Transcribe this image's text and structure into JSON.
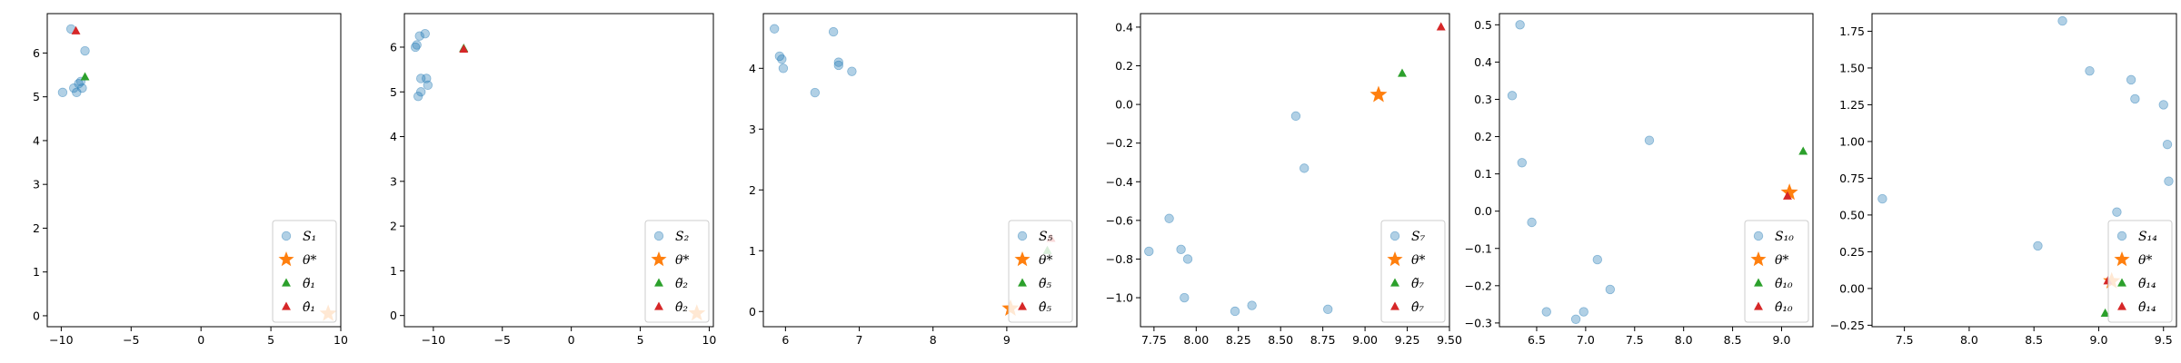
{
  "colors": {
    "sample": "#1f77b4",
    "star": "#ff7f0e",
    "tri_green": "#2ca02c",
    "tri_red": "#d62728"
  },
  "chart_data": [
    {
      "type": "scatter",
      "xlim": [
        -11.0,
        10.0
      ],
      "ylim": [
        -0.25,
        6.9
      ],
      "xticks": [
        -10,
        -5,
        0,
        5,
        10
      ],
      "xtick_labels": [
        "−10",
        "−5",
        "0",
        "5",
        "10"
      ],
      "yticks": [
        0,
        1,
        2,
        3,
        4,
        5,
        6
      ],
      "ytick_labels": [
        "0",
        "1",
        "2",
        "3",
        "4",
        "5",
        "6"
      ],
      "legend": {
        "placement": "lower-right",
        "labels": [
          "S₁",
          "θ*",
          "θ̃₁",
          "θ̂₁"
        ]
      },
      "samples": [
        [
          -9.9,
          5.1
        ],
        [
          -9.3,
          6.55
        ],
        [
          -9.1,
          5.2
        ],
        [
          -8.9,
          5.1
        ],
        [
          -8.75,
          5.3
        ],
        [
          -8.6,
          5.35
        ],
        [
          -8.3,
          6.05
        ],
        [
          -8.5,
          5.2
        ]
      ],
      "star": [
        9.1,
        0.05
      ],
      "tri_green": [
        -8.3,
        5.45
      ],
      "tri_red": [
        -8.95,
        6.5
      ]
    },
    {
      "type": "scatter",
      "xlim": [
        -12.1,
        10.3
      ],
      "ylim": [
        -0.25,
        6.75
      ],
      "xticks": [
        -10,
        -5,
        0,
        5,
        10
      ],
      "xtick_labels": [
        "−10",
        "−5",
        "0",
        "5",
        "10"
      ],
      "yticks": [
        0,
        1,
        2,
        3,
        4,
        5,
        6
      ],
      "ytick_labels": [
        "0",
        "1",
        "2",
        "3",
        "4",
        "5",
        "6"
      ],
      "legend": {
        "placement": "lower-right",
        "labels": [
          "S₂",
          "θ*",
          "θ̃₂",
          "θ̂₂"
        ]
      },
      "samples": [
        [
          -11.2,
          6.05
        ],
        [
          -11.0,
          6.25
        ],
        [
          -10.6,
          6.3
        ],
        [
          -10.9,
          5.3
        ],
        [
          -10.5,
          5.3
        ],
        [
          -10.4,
          5.15
        ],
        [
          -10.9,
          5.0
        ],
        [
          -11.1,
          4.9
        ],
        [
          -11.3,
          6.0
        ]
      ],
      "star": [
        9.1,
        0.05
      ],
      "tri_green": [
        -7.8,
        5.97
      ],
      "tri_red": [
        -7.8,
        5.95
      ]
    },
    {
      "type": "scatter",
      "xlim": [
        5.7,
        9.95
      ],
      "ylim": [
        -0.25,
        4.9
      ],
      "xticks": [
        6,
        7,
        8,
        9
      ],
      "xtick_labels": [
        "6",
        "7",
        "8",
        "9"
      ],
      "yticks": [
        0,
        1,
        2,
        3,
        4
      ],
      "ytick_labels": [
        "0",
        "1",
        "2",
        "3",
        "4"
      ],
      "legend": {
        "placement": "lower-right",
        "labels": [
          "S₅",
          "θ*",
          "θ̃₅",
          "θ̂₅"
        ]
      },
      "samples": [
        [
          5.85,
          4.65
        ],
        [
          5.92,
          4.2
        ],
        [
          5.95,
          4.15
        ],
        [
          5.97,
          4.0
        ],
        [
          6.4,
          3.6
        ],
        [
          6.65,
          4.6
        ],
        [
          6.72,
          4.1
        ],
        [
          6.72,
          4.05
        ],
        [
          6.9,
          3.95
        ]
      ],
      "star": [
        9.05,
        0.05
      ],
      "tri_green": [
        9.55,
        1.0
      ],
      "tri_red": [
        9.6,
        1.2
      ]
    },
    {
      "type": "scatter",
      "xlim": [
        7.67,
        9.5
      ],
      "ylim": [
        -1.15,
        0.47
      ],
      "xticks": [
        7.75,
        8.0,
        8.25,
        8.5,
        8.75,
        9.0,
        9.25,
        9.5
      ],
      "xtick_labels": [
        "7.75",
        "8.00",
        "8.25",
        "8.50",
        "8.75",
        "9.00",
        "9.25",
        "9.50"
      ],
      "yticks": [
        -1.0,
        -0.8,
        -0.6,
        -0.4,
        -0.2,
        0.0,
        0.2,
        0.4
      ],
      "ytick_labels": [
        "−1.0",
        "−0.8",
        "−0.6",
        "−0.4",
        "−0.2",
        "0.0",
        "0.2",
        "0.4"
      ],
      "legend": {
        "placement": "lower-right",
        "labels": [
          "S₇",
          "θ*",
          "θ̃₇",
          "θ̂₇"
        ]
      },
      "samples": [
        [
          7.72,
          -0.76
        ],
        [
          7.84,
          -0.59
        ],
        [
          7.91,
          -0.75
        ],
        [
          7.93,
          -1.0
        ],
        [
          7.95,
          -0.8
        ],
        [
          8.23,
          -1.07
        ],
        [
          8.33,
          -1.04
        ],
        [
          8.59,
          -0.06
        ],
        [
          8.64,
          -0.33
        ],
        [
          8.78,
          -1.06
        ]
      ],
      "star": [
        9.08,
        0.05
      ],
      "tri_green": [
        9.22,
        0.16
      ],
      "tri_red": [
        9.45,
        0.4
      ]
    },
    {
      "type": "scatter",
      "xlim": [
        6.12,
        9.32
      ],
      "ylim": [
        -0.31,
        0.53
      ],
      "xticks": [
        6.5,
        7.0,
        7.5,
        8.0,
        8.5,
        9.0
      ],
      "xtick_labels": [
        "6.5",
        "7.0",
        "7.5",
        "8.0",
        "8.5",
        "9.0"
      ],
      "yticks": [
        -0.3,
        -0.2,
        -0.1,
        0.0,
        0.1,
        0.2,
        0.3,
        0.4,
        0.5
      ],
      "ytick_labels": [
        "−0.3",
        "−0.2",
        "−0.1",
        "0.0",
        "0.1",
        "0.2",
        "0.3",
        "0.4",
        "0.5"
      ],
      "legend": {
        "placement": "lower-right",
        "labels": [
          "S₁₀",
          "θ*",
          "θ̃₁₀",
          "θ̂₁₀"
        ]
      },
      "samples": [
        [
          6.25,
          0.31
        ],
        [
          6.33,
          0.5
        ],
        [
          6.35,
          0.13
        ],
        [
          6.45,
          -0.03
        ],
        [
          6.6,
          -0.27
        ],
        [
          6.9,
          -0.29
        ],
        [
          6.98,
          -0.27
        ],
        [
          7.12,
          -0.13
        ],
        [
          7.25,
          -0.21
        ],
        [
          7.65,
          0.19
        ]
      ],
      "star": [
        9.08,
        0.05
      ],
      "tri_green": [
        9.22,
        0.16
      ],
      "tri_red": [
        9.06,
        0.04
      ]
    },
    {
      "type": "scatter",
      "xlim": [
        7.25,
        9.6
      ],
      "ylim": [
        -0.26,
        1.87
      ],
      "xticks": [
        7.5,
        8.0,
        8.5,
        9.0,
        9.5
      ],
      "xtick_labels": [
        "7.5",
        "8.0",
        "8.5",
        "9.0",
        "9.5"
      ],
      "yticks": [
        -0.25,
        0.0,
        0.25,
        0.5,
        0.75,
        1.0,
        1.25,
        1.5,
        1.75
      ],
      "ytick_labels": [
        "−0.25",
        "0.00",
        "0.25",
        "0.50",
        "0.75",
        "1.00",
        "1.25",
        "1.50",
        "1.75"
      ],
      "legend": {
        "placement": "lower-right",
        "labels": [
          "S₁₄",
          "θ*",
          "θ̃₁₄",
          "θ̂₁₄"
        ]
      },
      "samples": [
        [
          7.33,
          0.61
        ],
        [
          8.53,
          0.29
        ],
        [
          8.72,
          1.82
        ],
        [
          8.93,
          1.48
        ],
        [
          9.14,
          0.52
        ],
        [
          9.25,
          1.42
        ],
        [
          9.28,
          1.29
        ],
        [
          9.5,
          1.25
        ],
        [
          9.53,
          0.98
        ],
        [
          9.54,
          0.73
        ]
      ],
      "star": [
        9.1,
        0.05
      ],
      "tri_green": [
        9.05,
        -0.17
      ],
      "tri_red": [
        9.07,
        0.05
      ]
    }
  ]
}
